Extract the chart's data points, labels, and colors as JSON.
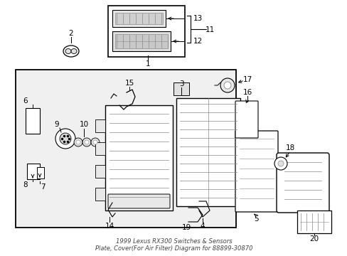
{
  "bg_color": "#ffffff",
  "line_color": "#000000",
  "gray": "#888888",
  "lightgray": "#dddddd",
  "dotgray": "#aaaaaa",
  "fig_w": 4.89,
  "fig_h": 3.6,
  "dpi": 100,
  "title": "1999 Lexus RX300 Switches & Sensors\nPlate, Cover(For Air Filter) Diagram for 88899-30870",
  "title_fontsize": 6.0,
  "label_fontsize": 7.5
}
